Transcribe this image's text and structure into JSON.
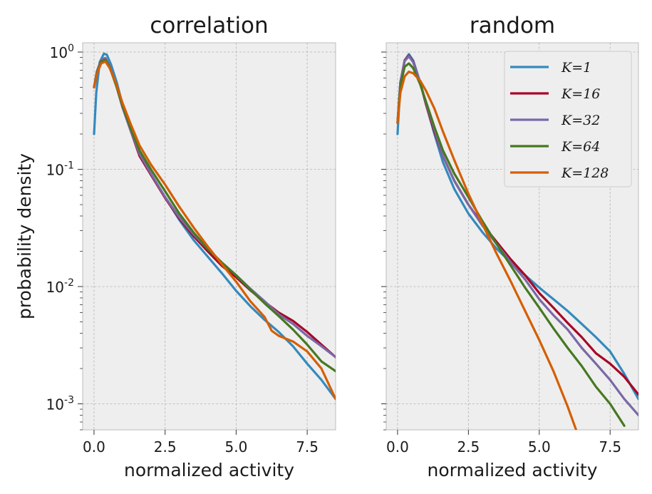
{
  "chart_data": [
    {
      "type": "line",
      "title": "correlation",
      "xlabel": "normalized activity",
      "ylabel": "probability density",
      "xlim": [
        -0.4,
        8.5
      ],
      "ylim": [
        0.0006,
        1.2
      ],
      "yscale": "log",
      "grid": true,
      "x_ticks": [
        "0.0",
        "2.5",
        "5.0",
        "7.5"
      ],
      "y_ticks": [
        {
          "base": "10",
          "exp": "0"
        },
        {
          "base": "10",
          "exp": "-1"
        },
        {
          "base": "10",
          "exp": "-2"
        },
        {
          "base": "10",
          "exp": "-3"
        }
      ],
      "series": [
        {
          "name": "K=1",
          "color": "#348ABD",
          "points": [
            [
              0,
              0.2
            ],
            [
              0.08,
              0.45
            ],
            [
              0.2,
              0.82
            ],
            [
              0.35,
              0.97
            ],
            [
              0.45,
              0.95
            ],
            [
              0.6,
              0.78
            ],
            [
              0.8,
              0.55
            ],
            [
              1.0,
              0.36
            ],
            [
              1.3,
              0.22
            ],
            [
              1.6,
              0.14
            ],
            [
              2.0,
              0.09
            ],
            [
              2.5,
              0.058
            ],
            [
              3.0,
              0.037
            ],
            [
              3.5,
              0.025
            ],
            [
              4.0,
              0.018
            ],
            [
              4.5,
              0.013
            ],
            [
              5.0,
              0.0092
            ],
            [
              5.5,
              0.0068
            ],
            [
              6.0,
              0.0052
            ],
            [
              6.5,
              0.0041
            ],
            [
              7.0,
              0.0031
            ],
            [
              7.5,
              0.0022
            ],
            [
              8.0,
              0.0016
            ],
            [
              8.5,
              0.0011
            ]
          ]
        },
        {
          "name": "K=16",
          "color": "#A60628",
          "points": [
            [
              0,
              0.5
            ],
            [
              0.1,
              0.68
            ],
            [
              0.25,
              0.85
            ],
            [
              0.4,
              0.88
            ],
            [
              0.55,
              0.75
            ],
            [
              0.8,
              0.5
            ],
            [
              1.0,
              0.34
            ],
            [
              1.3,
              0.21
            ],
            [
              1.6,
              0.13
            ],
            [
              2.0,
              0.09
            ],
            [
              2.5,
              0.057
            ],
            [
              3.0,
              0.038
            ],
            [
              3.5,
              0.027
            ],
            [
              4.0,
              0.02
            ],
            [
              4.5,
              0.015
            ],
            [
              5.0,
              0.012
            ],
            [
              5.5,
              0.0093
            ],
            [
              6.0,
              0.0074
            ],
            [
              6.5,
              0.006
            ],
            [
              7.0,
              0.0051
            ],
            [
              7.5,
              0.0041
            ],
            [
              8.0,
              0.0032
            ],
            [
              8.5,
              0.0025
            ]
          ]
        },
        {
          "name": "K=32",
          "color": "#7A68A6",
          "points": [
            [
              0,
              0.5
            ],
            [
              0.1,
              0.68
            ],
            [
              0.25,
              0.86
            ],
            [
              0.4,
              0.89
            ],
            [
              0.55,
              0.76
            ],
            [
              0.8,
              0.5
            ],
            [
              1.0,
              0.34
            ],
            [
              1.3,
              0.21
            ],
            [
              1.6,
              0.135
            ],
            [
              2.0,
              0.092
            ],
            [
              2.5,
              0.058
            ],
            [
              3.0,
              0.039
            ],
            [
              3.5,
              0.028
            ],
            [
              4.0,
              0.021
            ],
            [
              4.5,
              0.016
            ],
            [
              5.0,
              0.0125
            ],
            [
              5.5,
              0.0096
            ],
            [
              6.0,
              0.0075
            ],
            [
              6.5,
              0.0058
            ],
            [
              7.0,
              0.0048
            ],
            [
              7.5,
              0.0038
            ],
            [
              8.0,
              0.0031
            ],
            [
              8.5,
              0.0025
            ]
          ]
        },
        {
          "name": "K=64",
          "color": "#467821",
          "points": [
            [
              0,
              0.5
            ],
            [
              0.1,
              0.66
            ],
            [
              0.25,
              0.83
            ],
            [
              0.4,
              0.86
            ],
            [
              0.55,
              0.74
            ],
            [
              0.8,
              0.5
            ],
            [
              1.0,
              0.35
            ],
            [
              1.3,
              0.22
            ],
            [
              1.6,
              0.145
            ],
            [
              2.0,
              0.1
            ],
            [
              2.5,
              0.065
            ],
            [
              3.0,
              0.042
            ],
            [
              3.5,
              0.029
            ],
            [
              4.0,
              0.021
            ],
            [
              4.5,
              0.016
            ],
            [
              5.0,
              0.0125
            ],
            [
              5.5,
              0.0094
            ],
            [
              6.0,
              0.0072
            ],
            [
              6.5,
              0.0056
            ],
            [
              7.0,
              0.0043
            ],
            [
              7.5,
              0.0032
            ],
            [
              8.0,
              0.0023
            ],
            [
              8.5,
              0.0019
            ]
          ]
        },
        {
          "name": "K=128",
          "color": "#D55E00",
          "points": [
            [
              0,
              0.5
            ],
            [
              0.1,
              0.65
            ],
            [
              0.25,
              0.8
            ],
            [
              0.4,
              0.83
            ],
            [
              0.55,
              0.73
            ],
            [
              0.8,
              0.52
            ],
            [
              1.0,
              0.37
            ],
            [
              1.3,
              0.24
            ],
            [
              1.6,
              0.16
            ],
            [
              2.0,
              0.11
            ],
            [
              2.5,
              0.074
            ],
            [
              3.0,
              0.048
            ],
            [
              3.5,
              0.032
            ],
            [
              4.0,
              0.022
            ],
            [
              4.5,
              0.0155
            ],
            [
              5.0,
              0.011
            ],
            [
              5.5,
              0.0075
            ],
            [
              6.0,
              0.0055
            ],
            [
              6.25,
              0.0042
            ],
            [
              6.5,
              0.0038
            ],
            [
              7.0,
              0.0034
            ],
            [
              7.5,
              0.0028
            ],
            [
              8.0,
              0.002
            ],
            [
              8.3,
              0.0014
            ],
            [
              8.5,
              0.0011
            ]
          ]
        }
      ]
    },
    {
      "type": "line",
      "title": "random",
      "xlabel": "normalized activity",
      "ylabel": "",
      "xlim": [
        -0.4,
        8.5
      ],
      "ylim": [
        0.0006,
        1.2
      ],
      "yscale": "log",
      "grid": true,
      "x_ticks": [
        "0.0",
        "2.5",
        "5.0",
        "7.5"
      ],
      "legend_position": "top-right",
      "series": [
        {
          "name": "K=1",
          "color": "#348ABD",
          "points": [
            [
              0,
              0.2
            ],
            [
              0.1,
              0.55
            ],
            [
              0.25,
              0.85
            ],
            [
              0.4,
              0.96
            ],
            [
              0.55,
              0.85
            ],
            [
              0.8,
              0.55
            ],
            [
              1.0,
              0.36
            ],
            [
              1.3,
              0.2
            ],
            [
              1.6,
              0.115
            ],
            [
              2.0,
              0.068
            ],
            [
              2.5,
              0.042
            ],
            [
              3.0,
              0.029
            ],
            [
              3.5,
              0.021
            ],
            [
              4.0,
              0.016
            ],
            [
              4.5,
              0.0125
            ],
            [
              5.0,
              0.0098
            ],
            [
              5.5,
              0.0078
            ],
            [
              6.0,
              0.0062
            ],
            [
              6.5,
              0.0048
            ],
            [
              7.0,
              0.0037
            ],
            [
              7.5,
              0.0028
            ],
            [
              8.0,
              0.0018
            ],
            [
              8.5,
              0.0011
            ]
          ]
        },
        {
          "name": "K=16",
          "color": "#A60628",
          "points": [
            [
              0,
              0.25
            ],
            [
              0.1,
              0.55
            ],
            [
              0.25,
              0.85
            ],
            [
              0.4,
              0.93
            ],
            [
              0.55,
              0.83
            ],
            [
              0.8,
              0.55
            ],
            [
              1.0,
              0.36
            ],
            [
              1.3,
              0.21
            ],
            [
              1.6,
              0.13
            ],
            [
              2.0,
              0.08
            ],
            [
              2.5,
              0.05
            ],
            [
              3.0,
              0.034
            ],
            [
              3.5,
              0.024
            ],
            [
              4.0,
              0.017
            ],
            [
              4.5,
              0.0125
            ],
            [
              5.0,
              0.0088
            ],
            [
              5.5,
              0.0066
            ],
            [
              6.0,
              0.0049
            ],
            [
              6.5,
              0.0037
            ],
            [
              7.0,
              0.0027
            ],
            [
              7.5,
              0.0022
            ],
            [
              8.0,
              0.0017
            ],
            [
              8.5,
              0.0012
            ]
          ]
        },
        {
          "name": "K=32",
          "color": "#7A68A6",
          "points": [
            [
              0,
              0.25
            ],
            [
              0.1,
              0.55
            ],
            [
              0.25,
              0.84
            ],
            [
              0.4,
              0.92
            ],
            [
              0.55,
              0.82
            ],
            [
              0.8,
              0.55
            ],
            [
              1.0,
              0.37
            ],
            [
              1.3,
              0.22
            ],
            [
              1.6,
              0.13
            ],
            [
              2.0,
              0.08
            ],
            [
              2.5,
              0.05
            ],
            [
              3.0,
              0.033
            ],
            [
              3.5,
              0.023
            ],
            [
              4.0,
              0.016
            ],
            [
              4.5,
              0.0115
            ],
            [
              5.0,
              0.0078
            ],
            [
              5.5,
              0.0057
            ],
            [
              6.0,
              0.0043
            ],
            [
              6.5,
              0.003
            ],
            [
              7.0,
              0.0022
            ],
            [
              7.5,
              0.0016
            ],
            [
              8.0,
              0.0011
            ],
            [
              8.5,
              0.0008
            ]
          ]
        },
        {
          "name": "K=64",
          "color": "#467821",
          "points": [
            [
              0,
              0.25
            ],
            [
              0.1,
              0.52
            ],
            [
              0.25,
              0.75
            ],
            [
              0.4,
              0.8
            ],
            [
              0.55,
              0.73
            ],
            [
              0.8,
              0.53
            ],
            [
              1.0,
              0.38
            ],
            [
              1.3,
              0.23
            ],
            [
              1.6,
              0.145
            ],
            [
              2.0,
              0.092
            ],
            [
              2.5,
              0.058
            ],
            [
              3.0,
              0.036
            ],
            [
              3.5,
              0.023
            ],
            [
              4.0,
              0.015
            ],
            [
              4.5,
              0.0098
            ],
            [
              5.0,
              0.0066
            ],
            [
              5.5,
              0.0044
            ],
            [
              6.0,
              0.003
            ],
            [
              6.5,
              0.0021
            ],
            [
              7.0,
              0.0014
            ],
            [
              7.5,
              0.001
            ],
            [
              8.0,
              0.00065
            ]
          ]
        },
        {
          "name": "K=128",
          "color": "#D55E00",
          "points": [
            [
              0,
              0.25
            ],
            [
              0.1,
              0.45
            ],
            [
              0.25,
              0.62
            ],
            [
              0.4,
              0.68
            ],
            [
              0.55,
              0.66
            ],
            [
              0.8,
              0.57
            ],
            [
              1.0,
              0.47
            ],
            [
              1.3,
              0.33
            ],
            [
              1.6,
              0.21
            ],
            [
              2.0,
              0.12
            ],
            [
              2.5,
              0.062
            ],
            [
              3.0,
              0.034
            ],
            [
              3.5,
              0.019
            ],
            [
              4.0,
              0.011
            ],
            [
              4.5,
              0.0062
            ],
            [
              5.0,
              0.0035
            ],
            [
              5.5,
              0.0019
            ],
            [
              6.0,
              0.00095
            ],
            [
              6.3,
              0.0006
            ]
          ]
        }
      ]
    }
  ]
}
